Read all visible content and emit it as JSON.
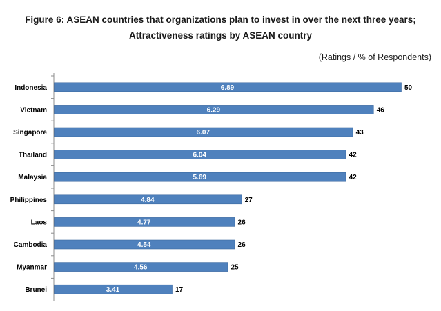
{
  "chart_data": {
    "type": "bar",
    "orientation": "horizontal",
    "title": "Figure 6: ASEAN countries that organizations plan to invest in over the next three years;",
    "subtitle": "Attractiveness ratings by ASEAN country",
    "units_note": "(Ratings / % of Respondents)",
    "categories": [
      "Indonesia",
      "Vietnam",
      "Singapore",
      "Thailand",
      "Malaysia",
      "Philippines",
      "Laos",
      "Cambodia",
      "Myanmar",
      "Brunei"
    ],
    "series": [
      {
        "values": [
          50,
          46,
          43,
          42,
          42,
          27,
          26,
          26,
          25,
          17
        ]
      }
    ],
    "ratings": [
      "6.89",
      "6.29",
      "6.07",
      "6.04",
      "5.69",
      "4.84",
      "4.77",
      "4.54",
      "4.56",
      "3.41"
    ],
    "xlim": [
      0,
      50
    ],
    "grid": false,
    "bar_color": "#4f81bd"
  }
}
